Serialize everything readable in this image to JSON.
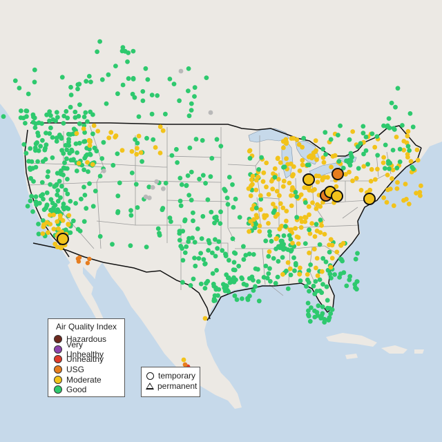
{
  "map": {
    "colors": {
      "water": "#c6d9ea",
      "land": "#ece9e4",
      "state_border": "#9a9a9a",
      "country_border": "#111111",
      "good": "#2ec96e",
      "moderate": "#f2c31b",
      "usg": "#e67d1f",
      "unhealthy": "#e03b2b",
      "very_unhealthy": "#8e44ad",
      "hazardous": "#6e2a1f",
      "no_data": "#b9b9b9"
    }
  },
  "legend_aqi": {
    "title": "Air Quality Index",
    "items": [
      {
        "label": "Hazardous",
        "color": "#6e2a1f"
      },
      {
        "label": "Very Unhealthy",
        "color": "#8e44ad"
      },
      {
        "label": "Unhealthy",
        "color": "#e03b2b"
      },
      {
        "label": "USG",
        "color": "#e67d1f"
      },
      {
        "label": "Moderate",
        "color": "#f2c31b"
      },
      {
        "label": "Good",
        "color": "#2ec96e"
      }
    ]
  },
  "legend_type": {
    "temporary_label": "temporary",
    "permanent_label": "permanent"
  }
}
